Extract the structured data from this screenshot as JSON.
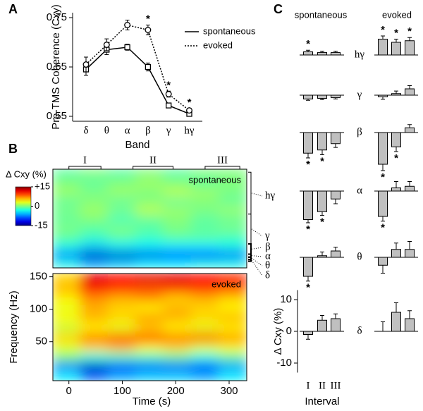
{
  "chart_data": [
    {
      "type": "line",
      "panel_label": "A",
      "ylabel": "Pre-TMS  Coherence (Cxy)",
      "xlabel": "Band",
      "categories": [
        "δ",
        "θ",
        "α",
        "β",
        "γ",
        "hγ"
      ],
      "ylim": [
        0.54,
        0.76
      ],
      "yticks": [
        0.55,
        0.65,
        0.75
      ],
      "series": [
        {
          "name": "spontaneous",
          "color": "#000000",
          "line_style": "solid",
          "marker": "square",
          "values": [
            0.645,
            0.685,
            0.69,
            0.65,
            0.572,
            0.555
          ],
          "errors": [
            0.012,
            0.01,
            0.006,
            0.008,
            0.004,
            0.004
          ],
          "significance_labels": [
            null,
            null,
            null,
            null,
            null,
            null
          ]
        },
        {
          "name": "evoked",
          "color": "#000000",
          "line_style": "dotted",
          "marker": "circle",
          "values": [
            0.655,
            0.695,
            0.735,
            0.725,
            0.595,
            0.562
          ],
          "errors": [
            0.015,
            0.012,
            0.01,
            0.01,
            0.006,
            0.004
          ],
          "significance_labels": [
            null,
            null,
            null,
            "*",
            "*",
            "*"
          ]
        }
      ]
    },
    {
      "type": "heatmap",
      "panel_label": "B",
      "xlabel": "Time (s)",
      "ylabel": "Frequency (Hz)",
      "xlim": [
        -30,
        333
      ],
      "xticks": [
        0,
        100,
        200,
        300
      ],
      "ylim": [
        -10,
        155
      ],
      "yticks": [
        50,
        100,
        150
      ],
      "colormap": "jet",
      "zlim": [
        -15,
        15
      ],
      "colorbar_label": "Δ Cxy (%)",
      "colorbar_ticks": [
        {
          "value": 15,
          "label": "+15"
        },
        0,
        -15
      ],
      "intervals": [
        {
          "label": "I",
          "range": [
            0,
            60
          ]
        },
        {
          "label": "II",
          "range": [
            120,
            195
          ]
        },
        {
          "label": "III",
          "range": [
            255,
            320
          ]
        }
      ],
      "bands": [
        {
          "label": "hγ",
          "range": [
            80,
            150
          ]
        },
        {
          "label": "γ",
          "range": [
            30,
            80
          ]
        },
        {
          "label": "β",
          "range": [
            13,
            30
          ]
        },
        {
          "label": "α",
          "range": [
            8,
            13
          ]
        },
        {
          "label": "θ",
          "range": [
            4,
            8
          ]
        },
        {
          "label": "δ",
          "range": [
            1,
            4
          ]
        }
      ],
      "heatmaps": [
        {
          "name": "spontaneous",
          "z": [
            [
              -3,
              -6,
              -5,
              -4,
              -4,
              -3,
              -3
            ],
            [
              -8,
              -13,
              -13,
              -12,
              -11,
              -11,
              -9
            ],
            [
              -3,
              -5,
              -4,
              -4,
              -4,
              -4,
              -3
            ],
            [
              -1,
              -2,
              -1,
              -2,
              -1,
              -1,
              -2
            ],
            [
              0,
              -1,
              0,
              -1,
              0,
              -1,
              0
            ],
            [
              -1,
              0,
              -2,
              -1,
              0,
              -1,
              -1
            ],
            [
              0,
              1,
              0,
              2,
              1,
              0,
              1
            ],
            [
              -1,
              0,
              -1,
              0,
              -1,
              0,
              -1
            ],
            [
              1,
              0,
              1,
              0,
              2,
              1,
              0
            ],
            [
              0,
              -1,
              0,
              1,
              0,
              -1,
              0
            ],
            [
              -1,
              0,
              -1,
              0,
              -1,
              0,
              0
            ]
          ]
        },
        {
          "name": "evoked",
          "z": [
            [
              -4,
              -8,
              -6,
              -5,
              -5,
              -6,
              -4
            ],
            [
              -8,
              -13,
              -11,
              -9,
              -9,
              -10,
              -7
            ],
            [
              0,
              -3,
              -2,
              -2,
              -1,
              -3,
              -1
            ],
            [
              3,
              5,
              6,
              4,
              5,
              3,
              4
            ],
            [
              5,
              8,
              9,
              10,
              8,
              9,
              7
            ],
            [
              2,
              4,
              3,
              5,
              4,
              3,
              4
            ],
            [
              4,
              6,
              5,
              7,
              6,
              5,
              6
            ],
            [
              3,
              6,
              5,
              4,
              6,
              5,
              4
            ],
            [
              4,
              7,
              6,
              7,
              5,
              6,
              5
            ],
            [
              6,
              11,
              10,
              9,
              10,
              10,
              9
            ],
            [
              5,
              12,
              11,
              12,
              12,
              11,
              10
            ]
          ]
        }
      ]
    },
    {
      "type": "bar",
      "panel_label": "C",
      "ylabel": "Δ Cxy (%)",
      "xlabel": "Interval",
      "color": "#c0c0c0",
      "columns": [
        "spontaneous",
        "evoked"
      ],
      "categories": [
        "I",
        "II",
        "III"
      ],
      "ylim": [
        -13,
        13
      ],
      "yticks": [
        10,
        0,
        -10
      ],
      "rows": [
        {
          "band": "hγ",
          "values": [
            [
              1,
              0.8,
              0.8
            ],
            [
              5,
              4,
              4.5
            ]
          ],
          "errors": [
            [
              0.5,
              0.4,
              0.4
            ],
            [
              1,
              1,
              1
            ]
          ],
          "significance_labels": [
            [
              "*",
              null,
              null
            ],
            [
              "*",
              "*",
              "*"
            ]
          ]
        },
        {
          "band": "γ",
          "values": [
            [
              -1.2,
              -1,
              -0.8
            ],
            [
              -0.5,
              0.5,
              2
            ]
          ],
          "errors": [
            [
              0.4,
              0.4,
              0.4
            ],
            [
              0.8,
              0.8,
              1
            ]
          ],
          "significance_labels": [
            [
              null,
              null,
              null
            ],
            [
              null,
              null,
              null
            ]
          ]
        },
        {
          "band": "β",
          "values": [
            [
              -6.5,
              -5.5,
              -3.5
            ],
            [
              -10,
              -4.5,
              1.5
            ]
          ],
          "errors": [
            [
              1.5,
              1.5,
              1.2
            ],
            [
              2,
              1.5,
              1
            ]
          ],
          "significance_labels": [
            [
              "*",
              "*",
              null
            ],
            [
              "*",
              "*",
              null
            ]
          ]
        },
        {
          "band": "α",
          "values": [
            [
              -9,
              -6.5,
              -2.5
            ],
            [
              -8,
              1,
              1.5
            ]
          ],
          "errors": [
            [
              1,
              1.2,
              1.5
            ],
            [
              1.5,
              2,
              1.5
            ]
          ],
          "significance_labels": [
            [
              "*",
              "*",
              null
            ],
            [
              "*",
              null,
              null
            ]
          ]
        },
        {
          "band": "θ",
          "values": [
            [
              -6,
              0.5,
              2
            ],
            [
              -2.5,
              2.5,
              2.5
            ]
          ],
          "errors": [
            [
              1.5,
              1.2,
              1.2
            ],
            [
              2.5,
              2,
              2.5
            ]
          ],
          "significance_labels": [
            [
              "*",
              null,
              null
            ],
            [
              null,
              null,
              null
            ]
          ]
        },
        {
          "band": "δ",
          "values": [
            [
              -1,
              3.5,
              4
            ],
            [
              0,
              6,
              4
            ]
          ],
          "errors": [
            [
              1.5,
              1.5,
              1.5
            ],
            [
              3,
              3,
              2.5
            ]
          ],
          "significance_labels": [
            [
              null,
              null,
              null
            ],
            [
              null,
              null,
              null
            ]
          ]
        }
      ]
    }
  ]
}
